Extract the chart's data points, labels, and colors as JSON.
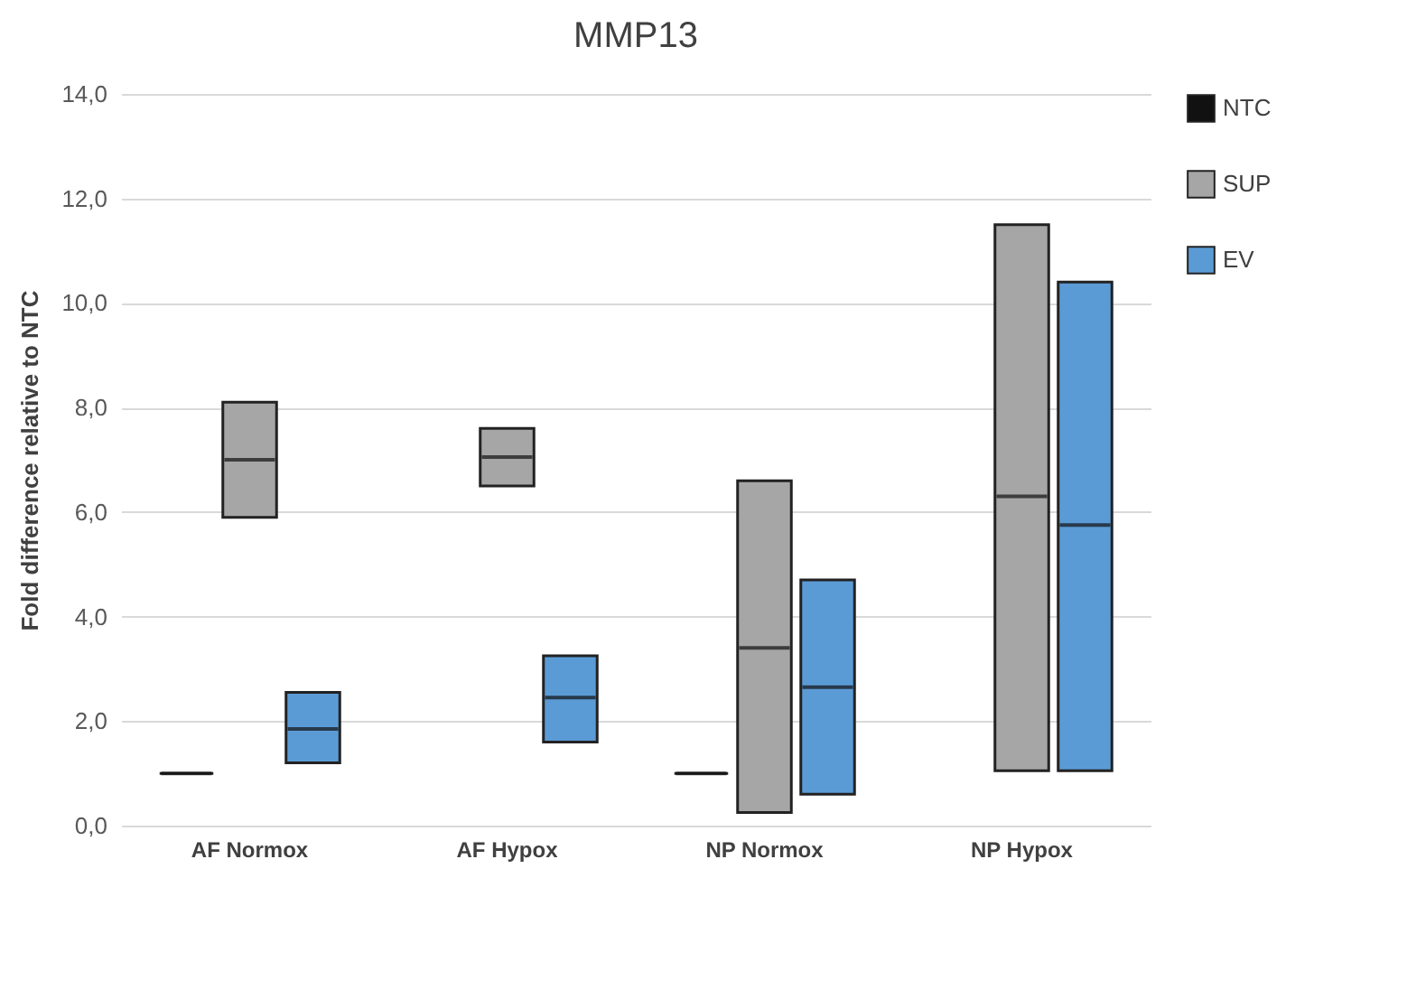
{
  "chart_data": {
    "type": "box",
    "title": "MMP13",
    "ylabel": "Fold difference relative to NTC",
    "categories": [
      "AF Normox",
      "AF Hypox",
      "NP Normox",
      "NP Hypox"
    ],
    "series": [
      {
        "name": "NTC",
        "color": "#111111",
        "boxes": [
          {
            "low": 1.0,
            "q1": 1.0,
            "median": 1.0,
            "q3": 1.0,
            "high": 1.0
          },
          null,
          {
            "low": 1.0,
            "q1": 1.0,
            "median": 1.0,
            "q3": 1.0,
            "high": 1.0
          },
          null
        ]
      },
      {
        "name": "SUP",
        "color": "#a6a6a6",
        "boxes": [
          {
            "low": 5.9,
            "q1": 5.9,
            "median": 7.0,
            "q3": 8.1,
            "high": 8.1
          },
          {
            "low": 6.5,
            "q1": 6.5,
            "median": 7.05,
            "q3": 7.6,
            "high": 7.6
          },
          {
            "low": 0.25,
            "q1": 0.25,
            "median": 3.4,
            "q3": 6.6,
            "high": 6.6
          },
          {
            "low": 1.05,
            "q1": 1.05,
            "median": 6.3,
            "q3": 11.5,
            "high": 11.5
          }
        ]
      },
      {
        "name": "EV",
        "color": "#5b9bd5",
        "boxes": [
          {
            "low": 1.2,
            "q1": 1.2,
            "median": 1.85,
            "q3": 2.55,
            "high": 2.55
          },
          {
            "low": 1.6,
            "q1": 1.6,
            "median": 2.45,
            "q3": 3.25,
            "high": 3.25
          },
          {
            "low": 0.6,
            "q1": 0.6,
            "median": 2.65,
            "q3": 4.7,
            "high": 4.7
          },
          {
            "low": 1.05,
            "q1": 1.05,
            "median": 5.75,
            "q3": 10.4,
            "high": 10.4
          }
        ]
      }
    ],
    "ylim": [
      0,
      14
    ],
    "yticks": [
      {
        "value": 0,
        "label": "0,0"
      },
      {
        "value": 2,
        "label": "2,0"
      },
      {
        "value": 4,
        "label": "4,0"
      },
      {
        "value": 6,
        "label": "6,0"
      },
      {
        "value": 8,
        "label": "8,0"
      },
      {
        "value": 10,
        "label": "10,0"
      },
      {
        "value": 12,
        "label": "12,0"
      },
      {
        "value": 14,
        "label": "14,0"
      }
    ],
    "grid": "y",
    "legend": "right"
  }
}
